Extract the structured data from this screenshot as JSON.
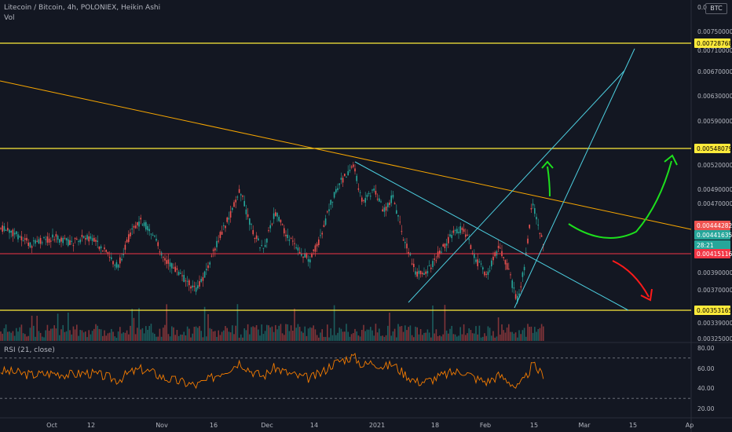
{
  "header": {
    "title": "Litecoin / Bitcoin, 4h, POLONIEX, Heikin Ashi",
    "volume_label": "Vol",
    "currency_badge": "BTC"
  },
  "rsi_panel": {
    "label": "RSI (21, close)",
    "ticks": [
      "80.00",
      "60.00",
      "40.00",
      "20.00"
    ]
  },
  "price_axis": {
    "ticks": [
      "0.00750000",
      "0.00710000",
      "0.00670000",
      "0.00630000",
      "0.00590000",
      "0.00520000",
      "0.00490000",
      "0.00470000",
      "0.00390000",
      "0.00370000",
      "0.00339000",
      "0.00325000"
    ],
    "top_partial": "0.0",
    "badges": [
      {
        "text": "0.00728768",
        "kind": "horizontal-level",
        "color": "#ffeb3b"
      },
      {
        "text": "0.00548079",
        "kind": "horizontal-level",
        "color": "#ffeb3b"
      },
      {
        "text": "0.00444282",
        "kind": "last-price",
        "color": "#ef5350"
      },
      {
        "text": "0.00441635",
        "kind": "current",
        "color": "#26a69a"
      },
      {
        "text": "28:21",
        "kind": "countdown",
        "color": "#26a69a"
      },
      {
        "text": "0.00415116",
        "kind": "red-level",
        "color": "#f23645"
      },
      {
        "text": "0.00353165",
        "kind": "horizontal-level",
        "color": "#ffeb3b"
      }
    ]
  },
  "time_axis": {
    "labels": [
      "Oct",
      "12",
      "Nov",
      "16",
      "Dec",
      "14",
      "2021",
      "18",
      "Feb",
      "15",
      "Mar",
      "15",
      "Ap"
    ]
  },
  "chart_data": {
    "type": "candlestick",
    "title": "Litecoin / Bitcoin, 4h, POLONIEX, Heikin Ashi",
    "y_axis": "price (BTC)",
    "horizontal_levels": [
      0.00728768,
      0.00548079,
      0.00415116,
      0.00353165
    ],
    "last_price": 0.00444282,
    "current_price": 0.00441635,
    "candle_up_color": "#26a69a",
    "candle_down_color": "#ef5350",
    "level_color": "#ffeb3b",
    "trendline_color": "#f7a600",
    "channel_color": "#4dd0e1",
    "rsi": {
      "period": 21,
      "source": "close",
      "upper_band": 70,
      "lower_band": 30,
      "ylim": [
        15,
        85
      ]
    }
  }
}
